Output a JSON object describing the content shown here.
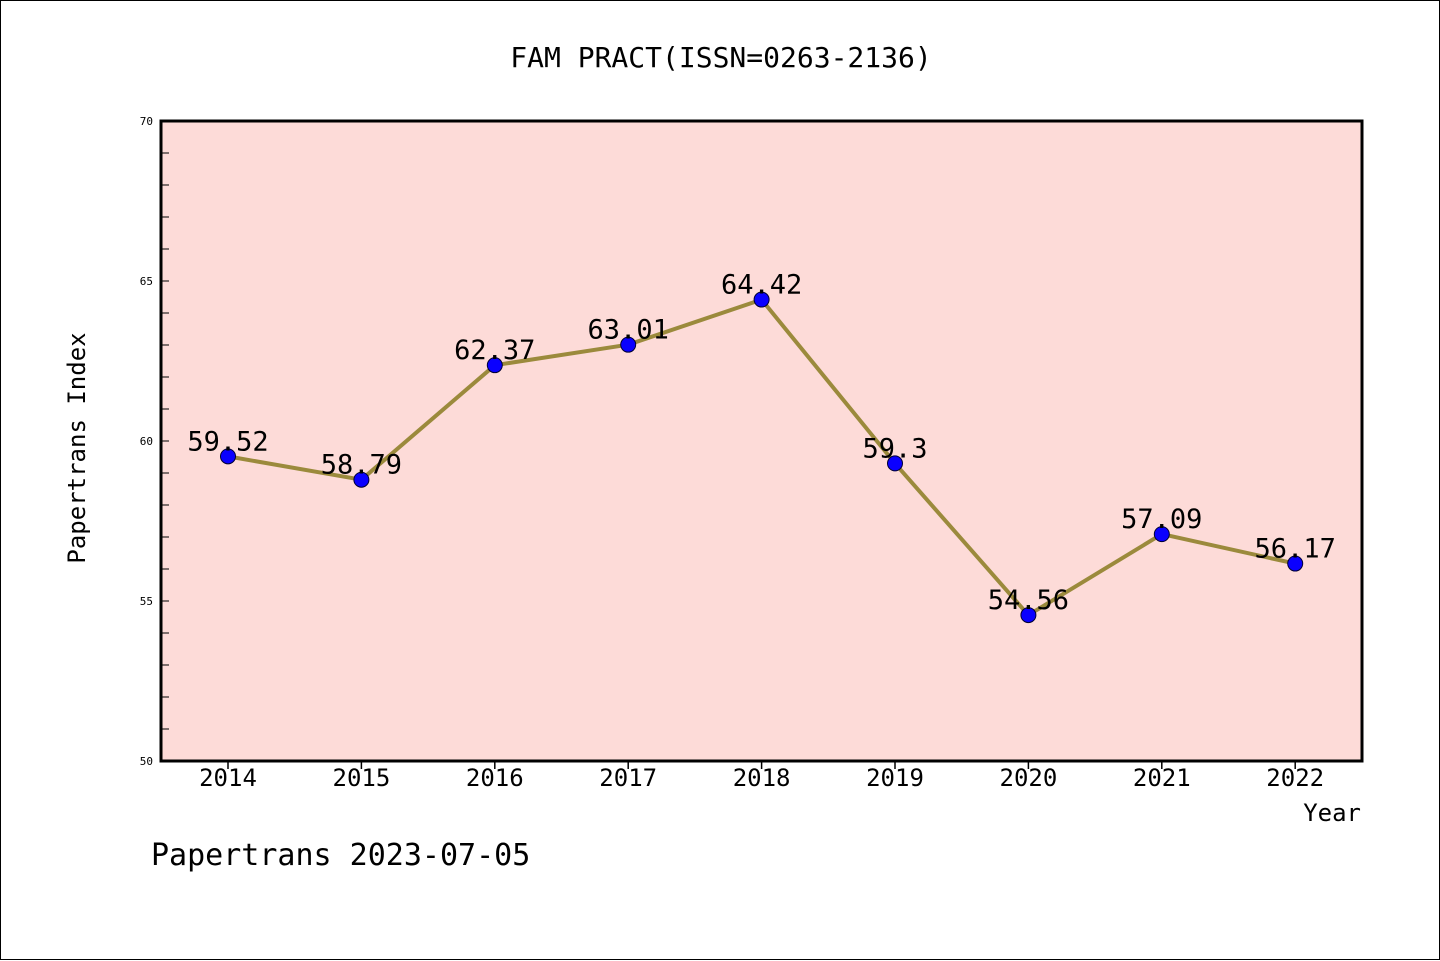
{
  "chart_data": {
    "type": "line",
    "title": "FAM PRACT(ISSN=0263-2136)",
    "xlabel": "Year",
    "ylabel": "Papertrans Index",
    "categories": [
      "2014",
      "2015",
      "2016",
      "2017",
      "2018",
      "2019",
      "2020",
      "2021",
      "2022"
    ],
    "series": [
      {
        "values": [
          59.52,
          58.79,
          62.37,
          63.01,
          64.42,
          59.3,
          54.56,
          57.09,
          56.17
        ],
        "labels": [
          "59.52",
          "58.79",
          "62.37",
          "63.01",
          "64.42",
          "59.3",
          "54.56",
          "57.09",
          "56.17"
        ]
      }
    ],
    "ylim": [
      50,
      70
    ],
    "yticks": [
      {
        "value": 50,
        "label": "50"
      },
      {
        "value": 55,
        "label": "55"
      },
      {
        "value": 60,
        "label": "60"
      },
      {
        "value": 65,
        "label": "65"
      },
      {
        "value": 70,
        "label": "70"
      }
    ],
    "grid": false,
    "footer": "Papertrans 2023-07-05",
    "colors": {
      "plot_background": "#fddbd8",
      "line": "#9b8a3c",
      "marker": "#0a00ff",
      "axis": "#000000"
    }
  }
}
